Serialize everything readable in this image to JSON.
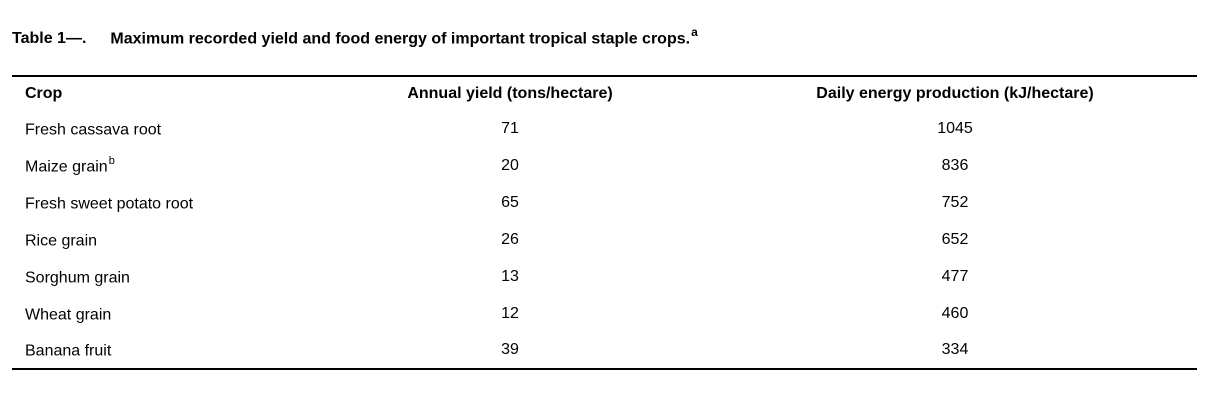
{
  "title": {
    "label": "Table 1—.",
    "caption": "Maximum recorded yield and food energy of important tropical staple crops.",
    "footnote_marker": "a"
  },
  "table": {
    "columns": [
      "Crop",
      "Annual yield (tons/hectare)",
      "Daily energy production (kJ/hectare)"
    ],
    "rows": [
      {
        "crop": "Fresh cassava root",
        "footnote": "",
        "yield": "71",
        "energy": "1045"
      },
      {
        "crop": "Maize grain",
        "footnote": "b",
        "yield": "20",
        "energy": "836"
      },
      {
        "crop": "Fresh sweet potato root",
        "footnote": "",
        "yield": "65",
        "energy": "752"
      },
      {
        "crop": "Rice grain",
        "footnote": "",
        "yield": "26",
        "energy": "652"
      },
      {
        "crop": "Sorghum grain",
        "footnote": "",
        "yield": "13",
        "energy": "477"
      },
      {
        "crop": "Wheat grain",
        "footnote": "",
        "yield": "12",
        "energy": "460"
      },
      {
        "crop": "Banana fruit",
        "footnote": "",
        "yield": "39",
        "energy": "334"
      }
    ]
  },
  "chart_data": {
    "type": "table",
    "title": "Table 1—. Maximum recorded yield and food energy of important tropical staple crops.",
    "columns": [
      "Crop",
      "Annual yield (tons/hectare)",
      "Daily energy production (kJ/hectare)"
    ],
    "rows": [
      [
        "Fresh cassava root",
        71,
        1045
      ],
      [
        "Maize grain (b)",
        20,
        836
      ],
      [
        "Fresh sweet potato root",
        65,
        752
      ],
      [
        "Rice grain",
        26,
        652
      ],
      [
        "Sorghum grain",
        13,
        477
      ],
      [
        "Wheat grain",
        12,
        460
      ],
      [
        "Banana fruit",
        39,
        334
      ]
    ]
  }
}
